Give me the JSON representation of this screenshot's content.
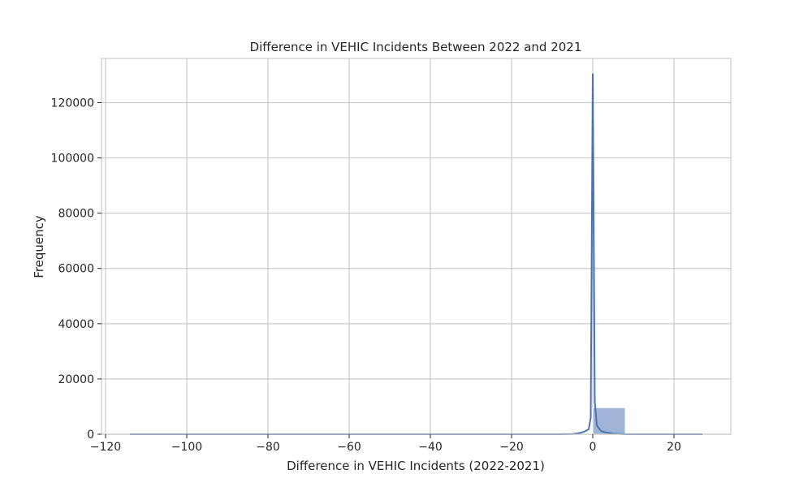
{
  "chart_data": {
    "type": "bar",
    "title": "Difference in VEHIC Incidents Between 2022 and 2021",
    "xlabel": "Difference in VEHIC Incidents (2022-2021)",
    "ylabel": "Frequency",
    "xlim": [
      -121,
      34
    ],
    "ylim": [
      0,
      136000
    ],
    "x_ticks": [
      -120,
      -100,
      -80,
      -60,
      -40,
      -20,
      0,
      20
    ],
    "x_tick_labels": [
      "−120",
      "−100",
      "−80",
      "−60",
      "−40",
      "−20",
      "0",
      "20"
    ],
    "y_ticks": [
      0,
      20000,
      40000,
      60000,
      80000,
      100000,
      120000
    ],
    "y_tick_labels": [
      "0",
      "20000",
      "40000",
      "60000",
      "80000",
      "100000",
      "120000"
    ],
    "grid": true,
    "colors": {
      "bar_fill": "#9fb3d6",
      "bar_edge": "#ffffff",
      "kde_line": "#4c72b0"
    },
    "histogram": {
      "bin_edges": [
        -114,
        -111.1,
        -5.6,
        0,
        8,
        27
      ],
      "values": [
        120,
        0,
        200,
        9600,
        150
      ]
    },
    "kde": {
      "x": [
        -114,
        -20,
        -8,
        -5,
        -3,
        -2,
        -1,
        -0.5,
        0,
        0.5,
        1,
        2,
        3,
        5,
        8,
        27
      ],
      "y": [
        0,
        0,
        0,
        80,
        500,
        1000,
        1800,
        6000,
        130500,
        12000,
        3200,
        1200,
        700,
        250,
        0,
        0
      ]
    }
  }
}
